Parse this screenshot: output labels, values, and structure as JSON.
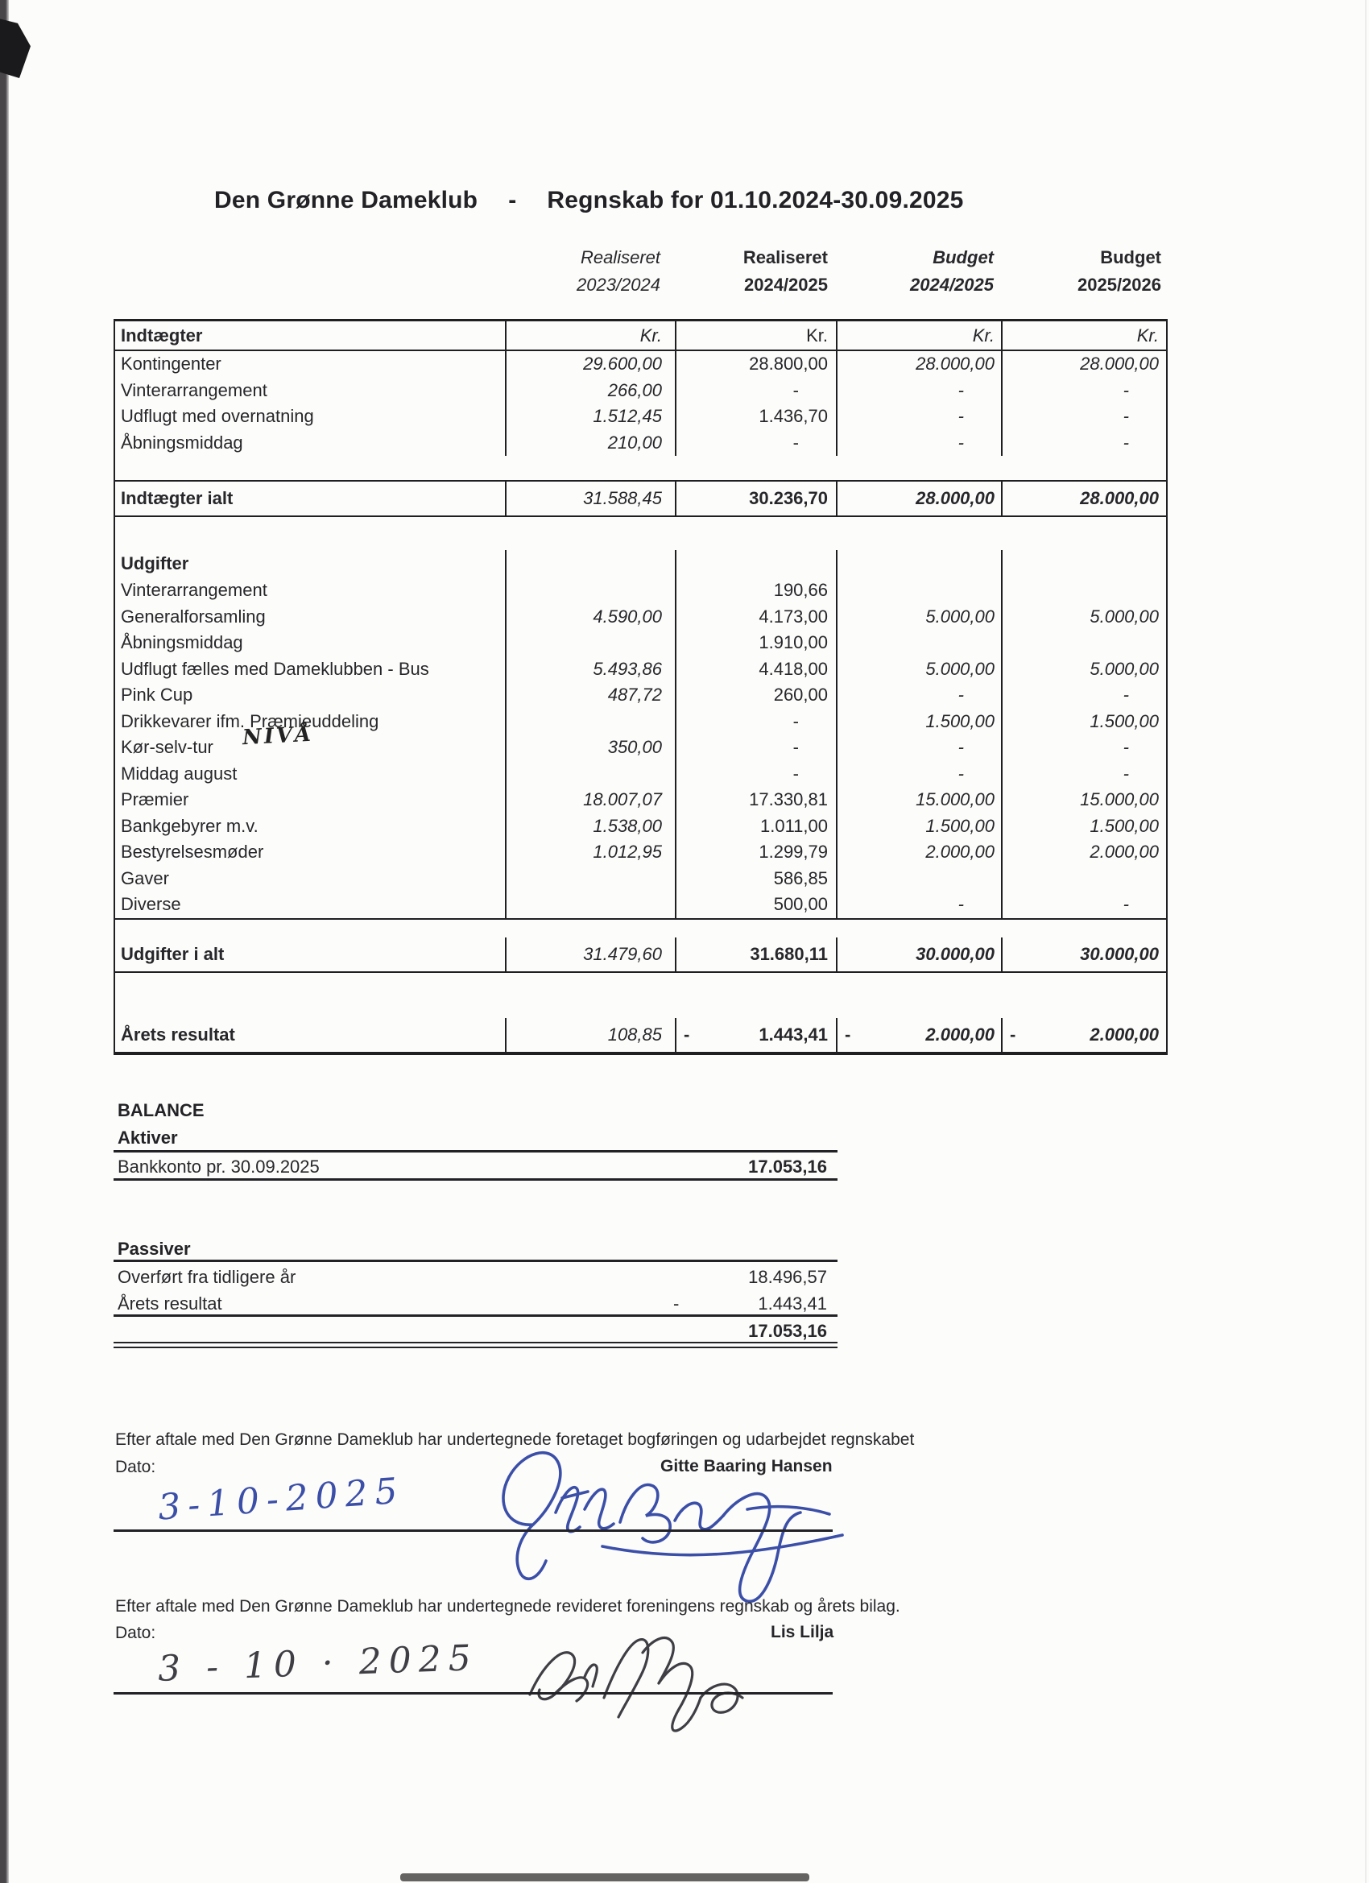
{
  "title": {
    "club": "Den Grønne Dameklub",
    "dash": "-",
    "period": "Regnskab for 01.10.2024-30.09.2025"
  },
  "columns": [
    {
      "line1": "Realiseret",
      "line2": "2023/2024"
    },
    {
      "line1": "Realiseret",
      "line2": "2024/2025"
    },
    {
      "line1": "Budget",
      "line2": "2024/2025"
    },
    {
      "line1": "Budget",
      "line2": "2025/2026"
    }
  ],
  "table": {
    "rows": [
      {
        "kind": "colhead",
        "label": "Indtægter",
        "cells": [
          "Kr.",
          "Kr.",
          "Kr.",
          "Kr."
        ]
      },
      {
        "kind": "item",
        "label": "Kontingenter",
        "cells": [
          "29.600,00",
          "28.800,00",
          "28.000,00",
          "28.000,00"
        ]
      },
      {
        "kind": "item",
        "label": "Vinterarrangement",
        "cells": [
          "266,00",
          "-",
          "-",
          "-"
        ]
      },
      {
        "kind": "item",
        "label": "Udflugt med overnatning",
        "cells": [
          "1.512,45",
          "1.436,70",
          "-",
          "-"
        ]
      },
      {
        "kind": "item",
        "label": "Åbningsmiddag",
        "cells": [
          "210,00",
          "-",
          "-",
          "-"
        ]
      },
      {
        "kind": "gap",
        "h": 30
      },
      {
        "kind": "rule"
      },
      {
        "kind": "total",
        "label": "Indtægter ialt",
        "cells": [
          "31.588,45",
          "30.236,70",
          "28.000,00",
          "28.000,00"
        ]
      },
      {
        "kind": "rule"
      },
      {
        "kind": "gap",
        "h": 41
      },
      {
        "kind": "subhead",
        "label": "Udgifter",
        "cells": [
          "",
          "",
          "",
          ""
        ]
      },
      {
        "kind": "item",
        "label": "Vinterarrangement",
        "cells": [
          "",
          "190,66",
          "",
          ""
        ]
      },
      {
        "kind": "item",
        "label": "Generalforsamling",
        "cells": [
          "4.590,00",
          "4.173,00",
          "5.000,00",
          "5.000,00"
        ]
      },
      {
        "kind": "item",
        "label": "Åbningsmiddag",
        "cells": [
          "",
          "1.910,00",
          "",
          ""
        ]
      },
      {
        "kind": "item",
        "label": "Udflugt fælles med Dameklubben - Bus",
        "cells": [
          "5.493,86",
          "4.418,00",
          "5.000,00",
          "5.000,00"
        ]
      },
      {
        "kind": "item",
        "label": "Pink Cup",
        "cells": [
          "487,72",
          "260,00",
          "-",
          "-"
        ]
      },
      {
        "kind": "item",
        "label": "Drikkevarer ifm. Præmieuddeling",
        "cells": [
          "",
          "-",
          "1.500,00",
          "1.500,00"
        ]
      },
      {
        "kind": "item",
        "label": "Kør-selv-tur",
        "cells": [
          "350,00",
          "-",
          "-",
          "-"
        ]
      },
      {
        "kind": "item",
        "label": "Middag august",
        "cells": [
          "",
          "-",
          "-",
          "-"
        ]
      },
      {
        "kind": "item",
        "label": "Præmier",
        "cells": [
          "18.007,07",
          "17.330,81",
          "15.000,00",
          "15.000,00"
        ]
      },
      {
        "kind": "item",
        "label": "Bankgebyrer m.v.",
        "cells": [
          "1.538,00",
          "1.011,00",
          "1.500,00",
          "1.500,00"
        ]
      },
      {
        "kind": "item",
        "label": "Bestyrelsesmøder",
        "cells": [
          "1.012,95",
          "1.299,79",
          "2.000,00",
          "2.000,00"
        ]
      },
      {
        "kind": "item",
        "label": "Gaver",
        "cells": [
          "",
          "586,85",
          "",
          ""
        ]
      },
      {
        "kind": "item",
        "label": "Diverse",
        "cells": [
          "",
          "500,00",
          "-",
          "-"
        ]
      },
      {
        "kind": "rule"
      },
      {
        "kind": "gap",
        "h": 22
      },
      {
        "kind": "total",
        "label": "Udgifter i alt",
        "cells": [
          "31.479,60",
          "31.680,11",
          "30.000,00",
          "30.000,00"
        ]
      },
      {
        "kind": "rule"
      },
      {
        "kind": "gap",
        "h": 56
      },
      {
        "kind": "total",
        "label": "Årets resultat",
        "cells": [
          "108,85",
          "1.443,41",
          "2.000,00",
          "2.000,00"
        ],
        "neg": [
          false,
          true,
          true,
          true
        ]
      }
    ]
  },
  "annotations": {
    "niva": "NIVÅ"
  },
  "balance": {
    "title": "BALANCE",
    "aktiver_heading": "Aktiver",
    "bank_label": "Bankkonto pr. 30.09.2025",
    "bank_value": "17.053,16",
    "passiver_heading": "Passiver",
    "overfort_label": "Overført fra tidligere år",
    "overfort_value": "18.496,57",
    "resultat_label": "Årets resultat",
    "resultat_minus": "-",
    "resultat_value": "1.443,41",
    "total_value": "17.053,16"
  },
  "signatures": [
    {
      "statement": "Efter aftale med Den Grønne Dameklub har undertegnede foretaget bogføringen og udarbejdet regnskabet",
      "date_label": "Dato:",
      "name": "Gitte Baaring Hansen",
      "handwritten_date": "3-10-2025",
      "ink": "#3b4fa8"
    },
    {
      "statement": "Efter aftale med Den Grønne Dameklub har undertegnede revideret foreningens regnskab og årets bilag.",
      "date_label": "Dato:",
      "name": "Lis Lilja",
      "handwritten_date": "3 - 10 · 2025",
      "ink": "#3e3e44"
    }
  ]
}
